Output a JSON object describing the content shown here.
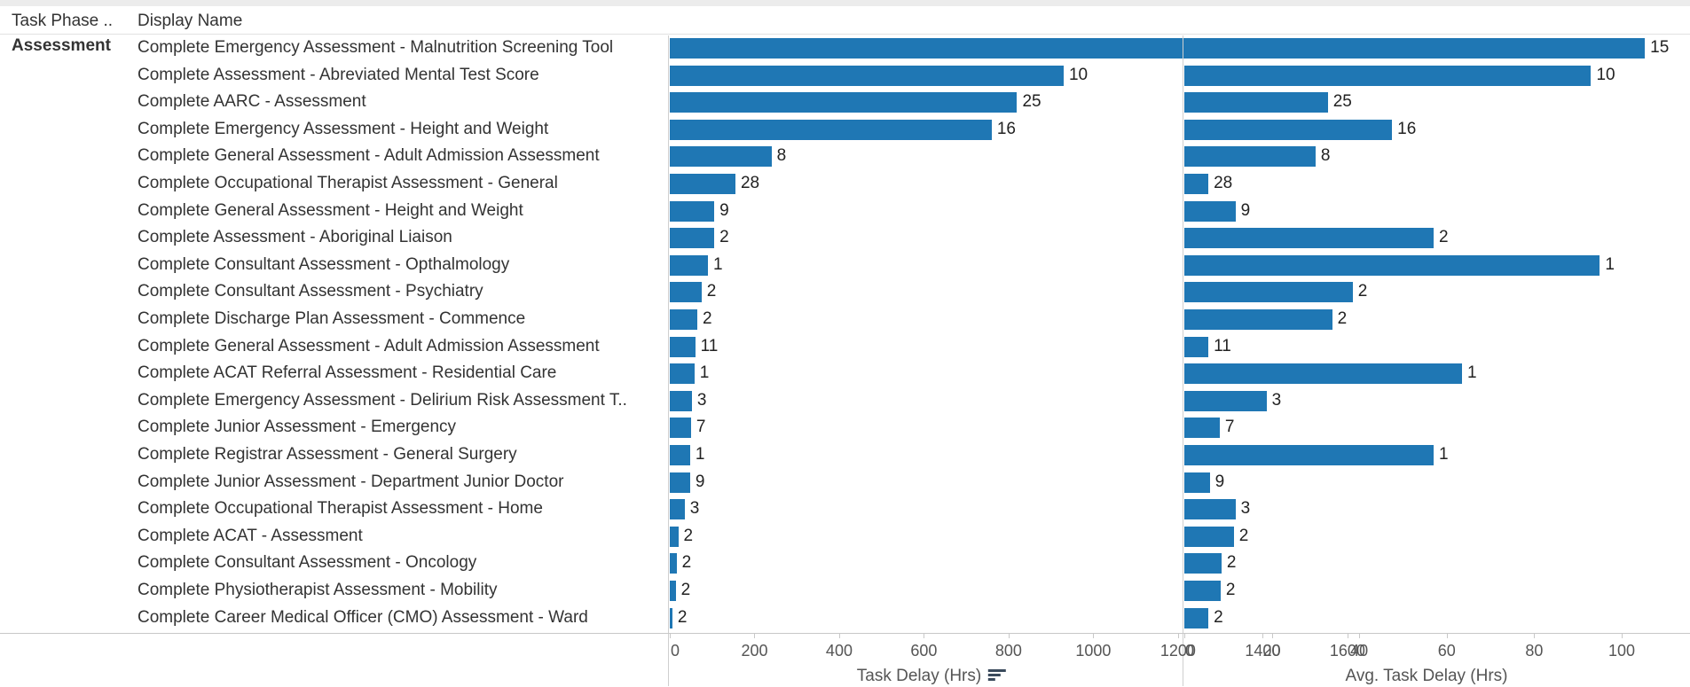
{
  "header": {
    "col1": "Task Phase ..",
    "col2": "Display Name"
  },
  "phase": "Assessment",
  "colors": {
    "bar": "#1f77b4"
  },
  "chart_data": [
    {
      "type": "bar",
      "orientation": "horizontal",
      "xlabel": "Task Delay (Hrs)",
      "xlim": [
        0,
        1700
      ],
      "ticks": [
        0,
        200,
        400,
        600,
        800,
        1000,
        1200,
        1400,
        1600
      ],
      "sort_icon": "sort-descending-icon",
      "categories": [
        "Complete Emergency  Assessment - Malnutrition Screening Tool",
        "Complete Assessment - Abreviated Mental Test Score",
        "Complete AARC - Assessment",
        "Complete Emergency  Assessment - Height and Weight",
        "Complete General  Assessment - Adult Admission Assessment",
        "Complete Occupational Therapist Assessment - General",
        "Complete General Assessment - Height and Weight",
        "Complete Assessment - Aboriginal Liaison",
        "Complete Consultant Assessment - Opthalmology",
        "Complete Consultant Assessment - Psychiatry",
        "Complete Discharge Plan Assessment - Commence",
        "Complete General Assessment - Adult Admission Assessment",
        "Complete ACAT Referral Assessment - Residential Care",
        "Complete Emergency  Assessment - Delirium Risk Assessment T..",
        "Complete Junior Assessment - Emergency",
        "Complete Registrar Assessment - General Surgery",
        "Complete Junior Assessment - Department Junior Doctor",
        "Complete Occupational Therapist Assessment - Home",
        "Complete ACAT - Assessment",
        "Complete Consultant Assessment - Oncology",
        "Complete Physiotherapist Assessment - Mobility",
        "Complete Career Medical Officer (CMO) Assessment - Ward"
      ],
      "values": [
        1580,
        930,
        820,
        760,
        240,
        155,
        105,
        105,
        90,
        75,
        65,
        60,
        58,
        52,
        50,
        48,
        48,
        35,
        20,
        16,
        14,
        6
      ],
      "data_labels": [
        15,
        10,
        25,
        16,
        8,
        28,
        9,
        2,
        1,
        2,
        2,
        11,
        1,
        3,
        7,
        1,
        9,
        3,
        2,
        2,
        2,
        2
      ]
    },
    {
      "type": "bar",
      "orientation": "horizontal",
      "xlabel": "Avg. Task Delay (Hrs)",
      "xlim": [
        0,
        110
      ],
      "ticks": [
        0,
        20,
        40,
        60,
        80,
        100
      ],
      "values": [
        105.3,
        93,
        32.8,
        47.5,
        30,
        5.5,
        11.7,
        57,
        95,
        38.5,
        33.8,
        5.5,
        63.5,
        18.8,
        8.1,
        57,
        5.8,
        11.7,
        11.3,
        8.5,
        8.3,
        5.5
      ],
      "data_labels": [
        15,
        10,
        25,
        16,
        8,
        28,
        9,
        2,
        1,
        2,
        2,
        11,
        1,
        3,
        7,
        1,
        9,
        3,
        2,
        2,
        2,
        2
      ]
    }
  ]
}
